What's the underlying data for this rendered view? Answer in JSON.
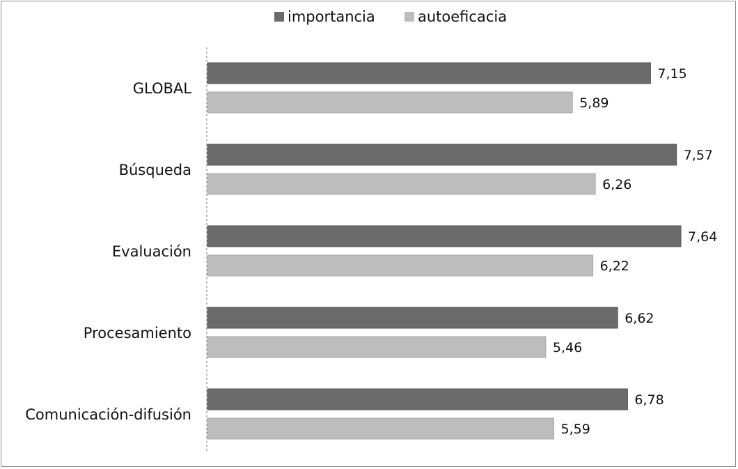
{
  "chart_data": {
    "type": "bar",
    "orientation": "horizontal",
    "title": "",
    "xlabel": "",
    "ylabel": "",
    "categories": [
      "GLOBAL",
      "Búsqueda",
      "Evaluación",
      "Procesamiento",
      "Comunicación-difusión"
    ],
    "series": [
      {
        "name": "importancia",
        "values": [
          7.15,
          7.57,
          7.64,
          6.62,
          6.78
        ],
        "labels": [
          "7,15",
          "7,57",
          "7,64",
          "6,62",
          "6,78"
        ],
        "color": "#6b6b6b"
      },
      {
        "name": "autoeficacia",
        "values": [
          5.89,
          6.26,
          6.22,
          5.46,
          5.59
        ],
        "labels": [
          "5,89",
          "6,26",
          "6,22",
          "5,46",
          "5,59"
        ],
        "color": "#bdbdbd"
      }
    ],
    "xlim": [
      0,
      8
    ],
    "grid": false,
    "legend": "top-center"
  }
}
